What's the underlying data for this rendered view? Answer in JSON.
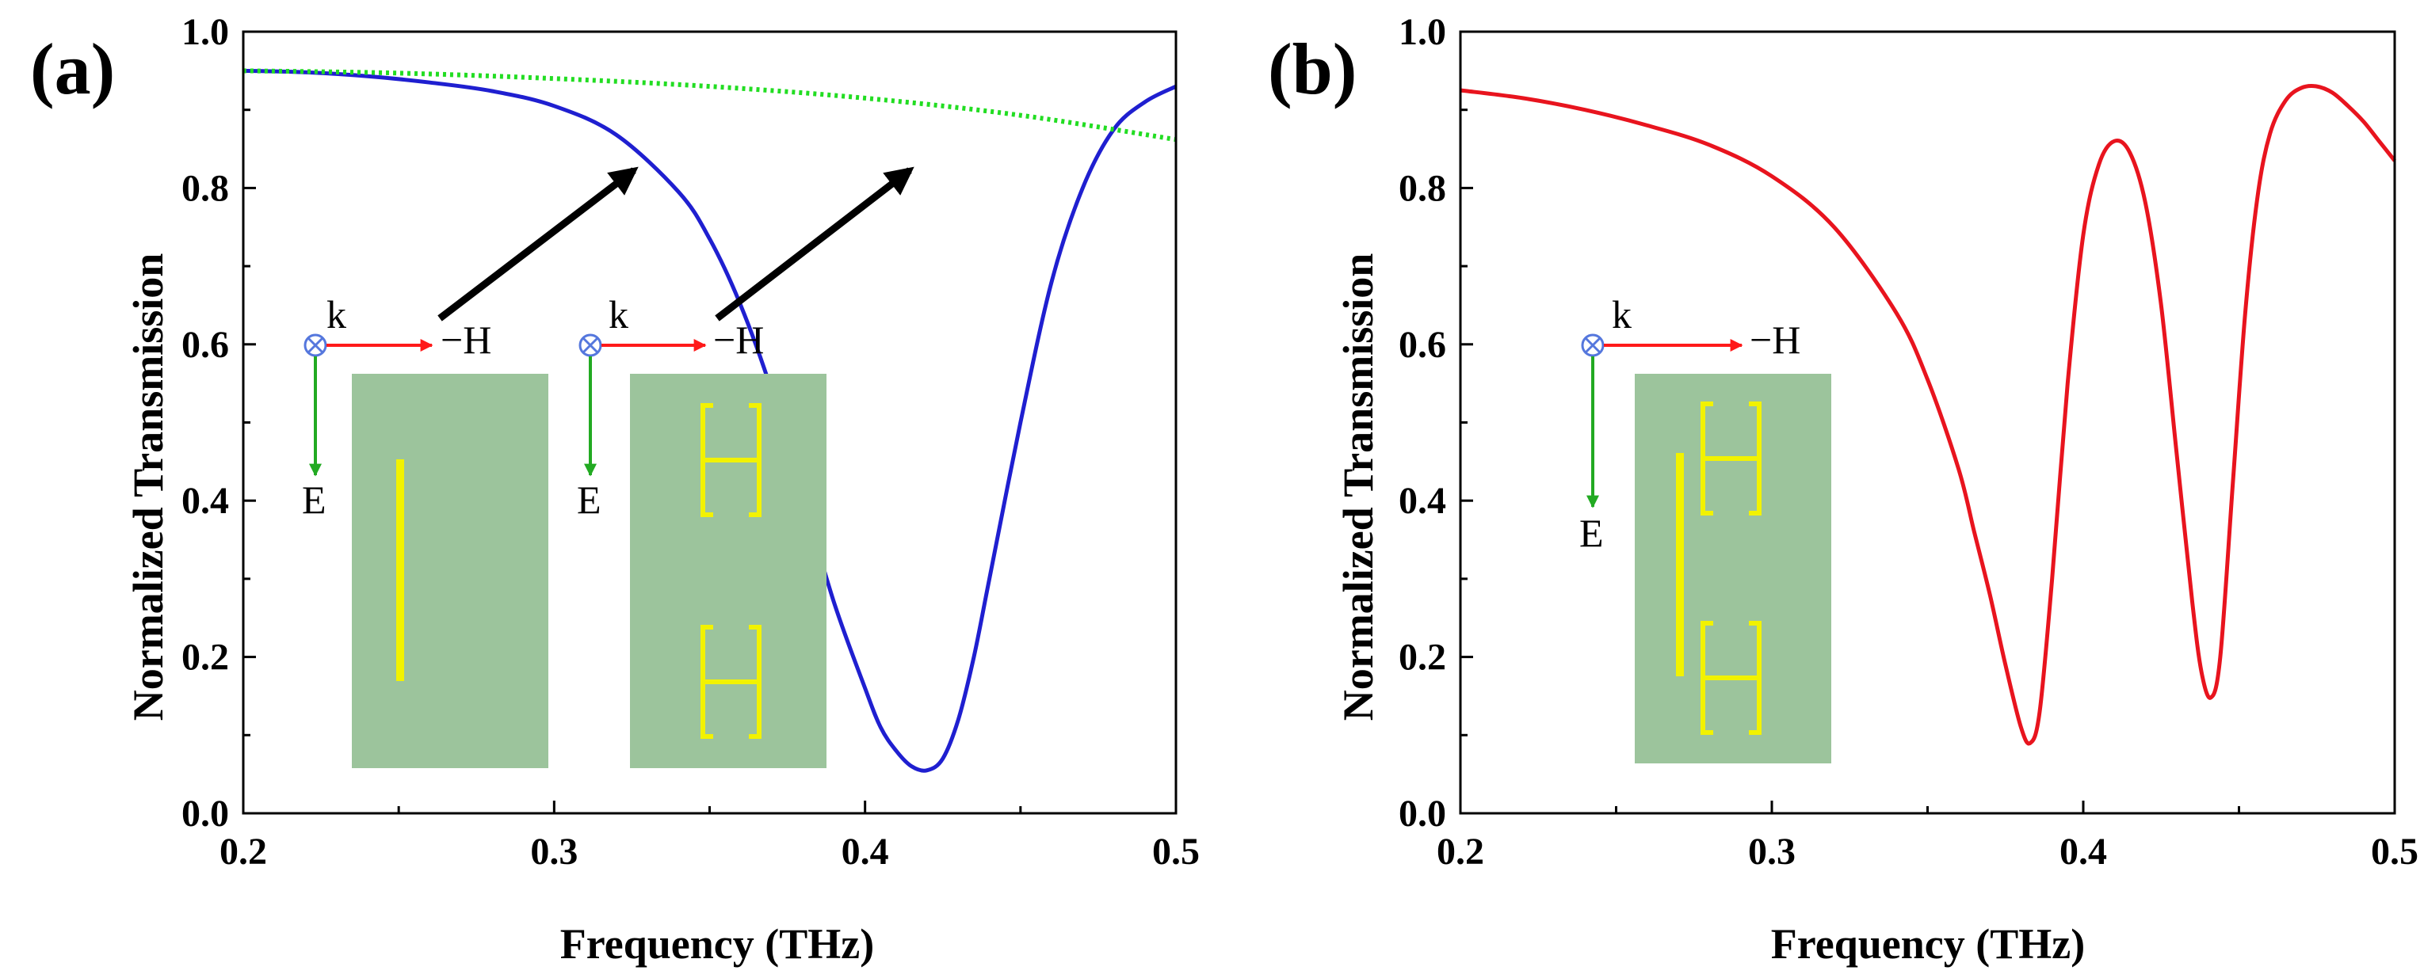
{
  "colors": {
    "blue": "#1f1fd0",
    "green": "#22dd22",
    "red": "#e8141e",
    "substrate": "#9cc49c",
    "resonator": "#f2f200",
    "axis_red": "#ff1a1a",
    "axis_green": "#22aa22",
    "k_symbol": "#5577dd"
  },
  "inset_labels": {
    "k": "k",
    "h": "−H",
    "e": "E"
  },
  "chart_data": [
    {
      "type": "line",
      "panel_label": "(a)",
      "xlabel": "Frequency (THz)",
      "ylabel": "Normalized Transmission",
      "xlim": [
        0.2,
        0.5
      ],
      "ylim": [
        0.0,
        1.0
      ],
      "xticks": [
        "0.2",
        "0.3",
        "0.4",
        "0.5"
      ],
      "yticks": [
        "0.0",
        "0.2",
        "0.4",
        "0.6",
        "0.8",
        "1.0"
      ],
      "grid": false,
      "legend": "none",
      "series": [
        {
          "color_key": "blue",
          "style": "solid",
          "x": [
            0.2,
            0.22,
            0.24,
            0.26,
            0.28,
            0.3,
            0.32,
            0.34,
            0.35,
            0.36,
            0.37,
            0.38,
            0.39,
            0.4,
            0.405,
            0.41,
            0.415,
            0.42,
            0.425,
            0.43,
            0.435,
            0.44,
            0.45,
            0.46,
            0.47,
            0.48,
            0.49,
            0.5
          ],
          "y": [
            0.95,
            0.948,
            0.943,
            0.935,
            0.924,
            0.905,
            0.868,
            0.795,
            0.735,
            0.65,
            0.54,
            0.405,
            0.27,
            0.16,
            0.11,
            0.08,
            0.06,
            0.055,
            0.07,
            0.12,
            0.2,
            0.3,
            0.5,
            0.68,
            0.8,
            0.875,
            0.91,
            0.93
          ]
        },
        {
          "color_key": "green",
          "style": "dotted",
          "x": [
            0.2,
            0.25,
            0.3,
            0.35,
            0.4,
            0.45,
            0.5
          ],
          "y": [
            0.95,
            0.947,
            0.94,
            0.93,
            0.915,
            0.893,
            0.862
          ]
        }
      ]
    },
    {
      "type": "line",
      "panel_label": "(b)",
      "xlabel": "Frequency (THz)",
      "ylabel": "Normalized Transmission",
      "xlim": [
        0.2,
        0.5
      ],
      "ylim": [
        0.0,
        1.0
      ],
      "xticks": [
        "0.2",
        "0.3",
        "0.4",
        "0.5"
      ],
      "yticks": [
        "0.0",
        "0.2",
        "0.4",
        "0.6",
        "0.8",
        "1.0"
      ],
      "grid": false,
      "legend": "none",
      "series": [
        {
          "color_key": "red",
          "style": "solid",
          "x": [
            0.2,
            0.22,
            0.24,
            0.26,
            0.28,
            0.3,
            0.32,
            0.34,
            0.35,
            0.36,
            0.365,
            0.37,
            0.375,
            0.38,
            0.383,
            0.386,
            0.39,
            0.395,
            0.4,
            0.405,
            0.41,
            0.415,
            0.42,
            0.425,
            0.43,
            0.435,
            0.438,
            0.441,
            0.444,
            0.448,
            0.452,
            0.456,
            0.46,
            0.465,
            0.47,
            0.475,
            0.48,
            0.485,
            0.49,
            0.495,
            0.5
          ],
          "y": [
            0.925,
            0.915,
            0.9,
            0.88,
            0.855,
            0.815,
            0.75,
            0.64,
            0.555,
            0.44,
            0.36,
            0.28,
            0.19,
            0.11,
            0.09,
            0.13,
            0.3,
            0.55,
            0.74,
            0.83,
            0.86,
            0.845,
            0.78,
            0.65,
            0.46,
            0.27,
            0.18,
            0.148,
            0.2,
            0.42,
            0.64,
            0.79,
            0.87,
            0.912,
            0.928,
            0.93,
            0.922,
            0.905,
            0.885,
            0.86,
            0.835
          ]
        }
      ]
    }
  ]
}
